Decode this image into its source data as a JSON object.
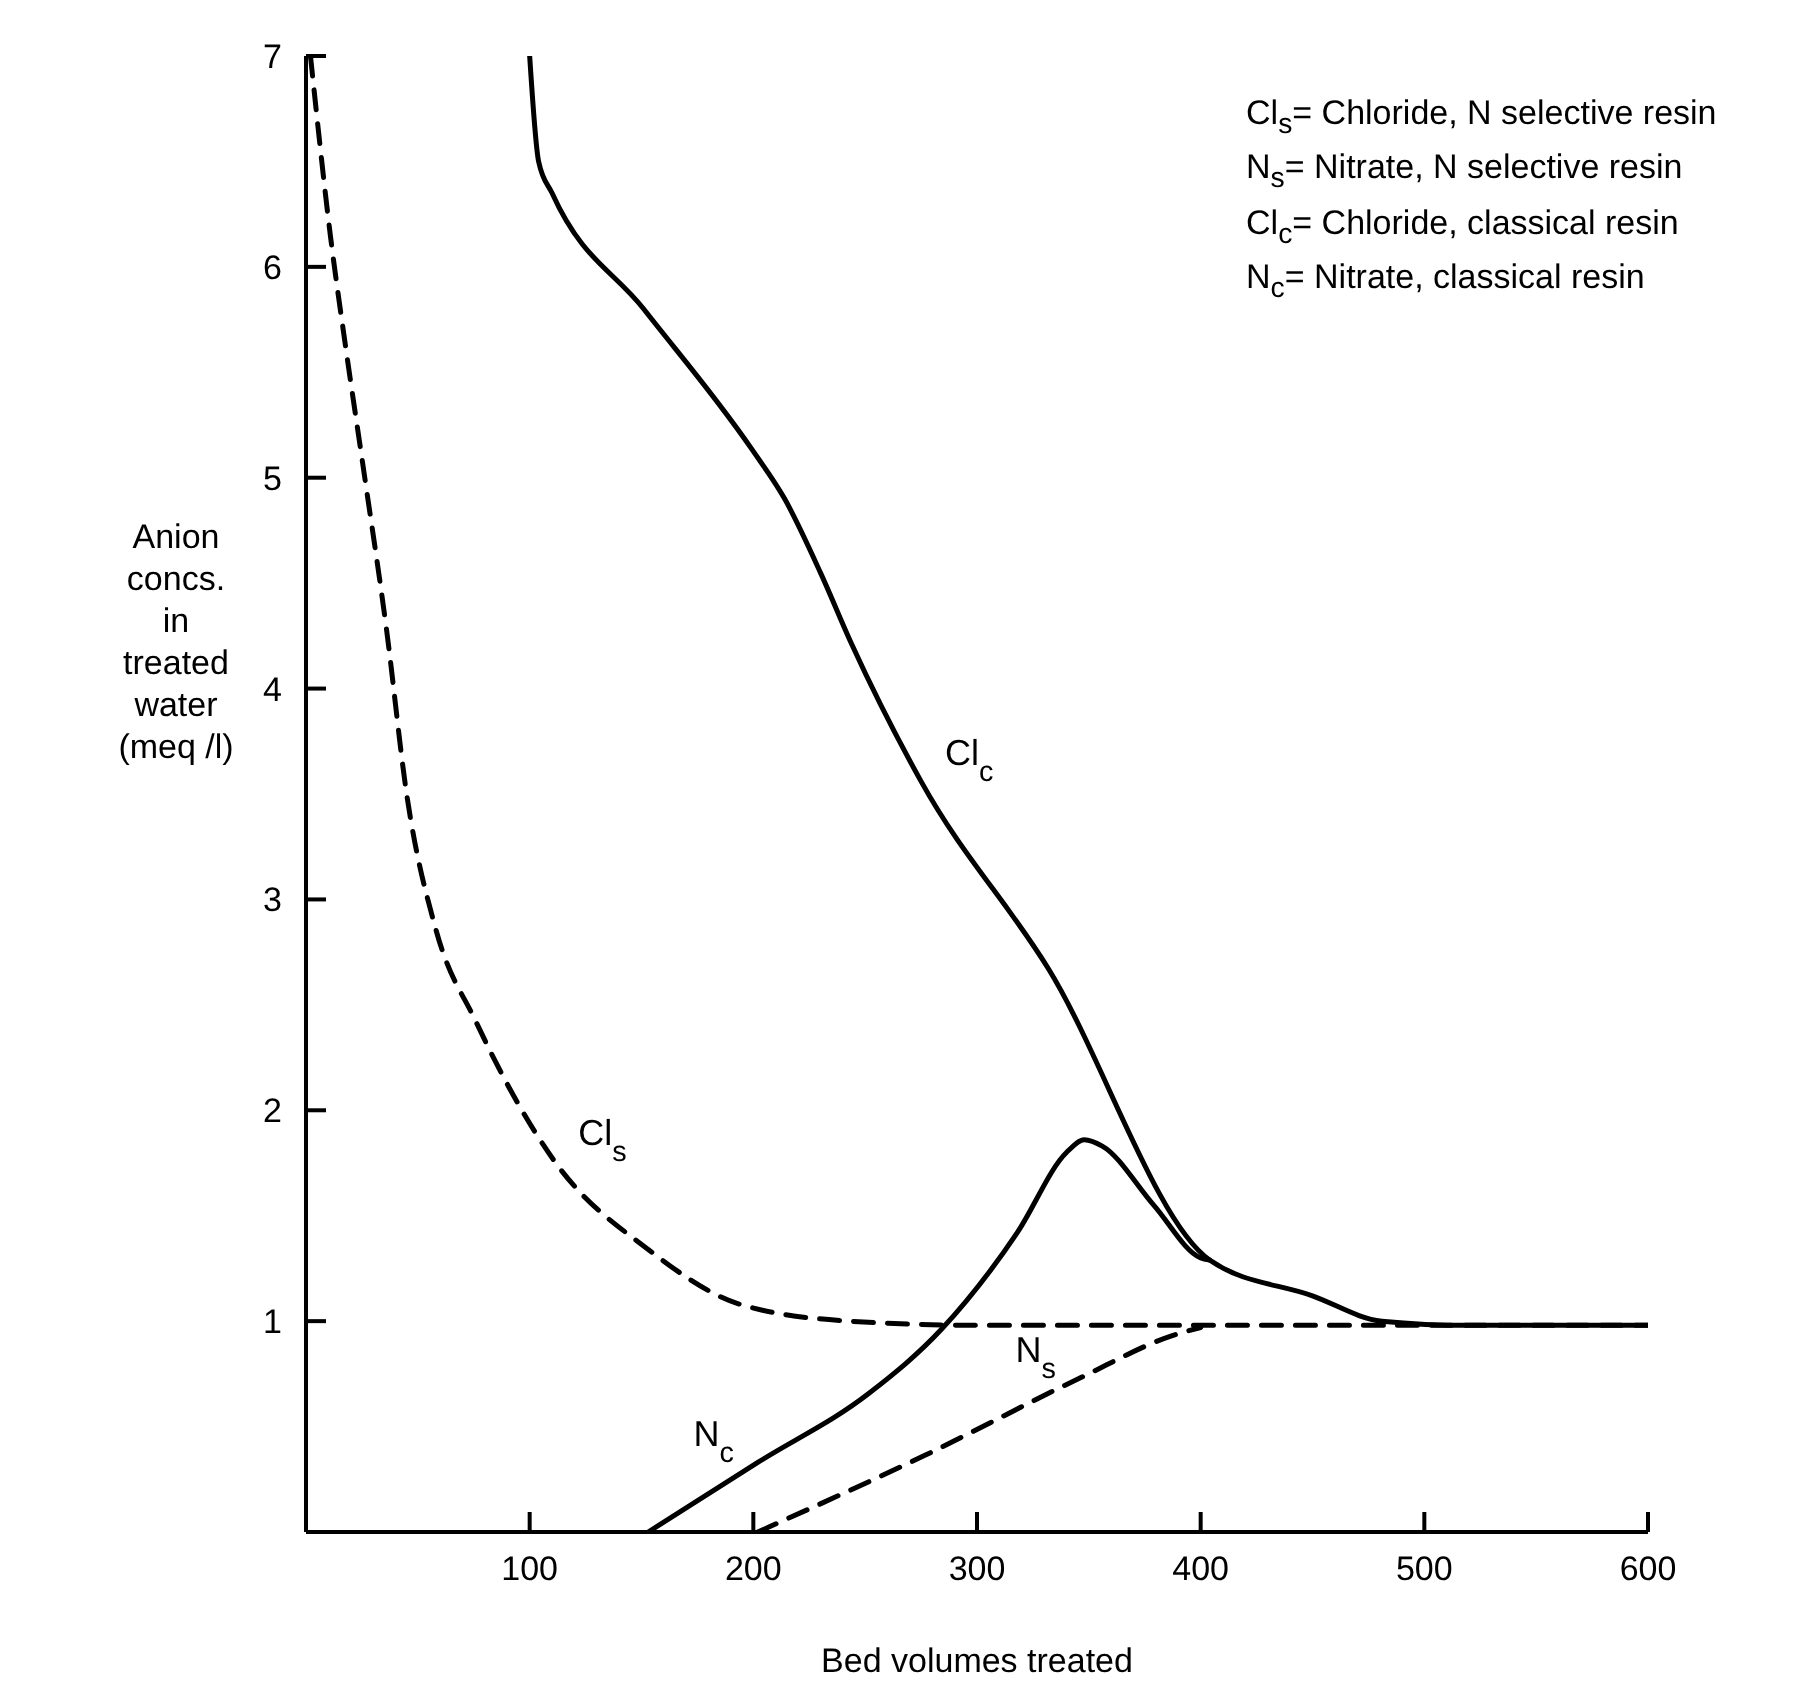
{
  "chart_data": {
    "type": "line",
    "xlabel": "Bed volumes treated",
    "ylabel": "Anion\nconcs.\nin\ntreated\nwater\n(meq /l)",
    "xlim": [
      0,
      600
    ],
    "xticks": [
      100,
      200,
      300,
      400,
      500,
      600
    ],
    "ylim": [
      0,
      7
    ],
    "yticks": [
      1,
      2,
      3,
      4,
      5,
      6,
      7
    ],
    "marker": "none",
    "series": [
      {
        "color": "#000000",
        "line_style": "solid",
        "x": [
          100,
          104,
          110,
          151,
          199,
          214,
          230,
          244,
          275,
          332,
          404,
          450,
          481,
          520,
          600
        ],
        "values": [
          7,
          6.5,
          6.35,
          5.8,
          5.14,
          4.9,
          4.55,
          4.21,
          3.56,
          2.67,
          1.29,
          1.12,
          1.0,
          0.98,
          0.98
        ]
      },
      {
        "color": "#000000",
        "line_style": "solid",
        "x": [
          153,
          202,
          252,
          284,
          318,
          340,
          348,
          356,
          379,
          400,
          404
        ],
        "values": [
          0,
          0.33,
          0.66,
          0.96,
          1.42,
          1.8,
          1.86,
          1.83,
          1.55,
          1.3,
          1.29
        ]
      },
      {
        "color": "#000000",
        "line_style": "dashed",
        "x": [
          2,
          11,
          18,
          26,
          36,
          45,
          58,
          76,
          111,
          153,
          194,
          243,
          300,
          400,
          500,
          600
        ],
        "values": [
          7,
          6.14,
          5.6,
          5.02,
          4.28,
          3.5,
          2.86,
          2.42,
          1.76,
          1.34,
          1.08,
          1.0,
          0.98,
          0.98,
          0.98,
          0.98
        ]
      },
      {
        "color": "#000000",
        "line_style": "dashed",
        "x": [
          202,
          276,
          346,
          387,
          400
        ],
        "values": [
          0,
          0.36,
          0.73,
          0.93,
          0.97
        ]
      }
    ],
    "annotations": [
      "Cl$_{s}$= Chloride, N selective resin",
      "N$_{s}$= Nitrate, N selective resin",
      "Cl$_{c}$= Chloride, classical resin",
      "N$_{c}$= Nitrate, classical resin",
      {
        "text": "Cl$_{c}$",
        "x": 275,
        "y": 3.56
      },
      {
        "text": "Cl$_{s}$",
        "x": 111,
        "y": 1.76
      },
      {
        "text": "N$_{c}$",
        "x": 202,
        "y": 0.33
      },
      {
        "text": "N$_{s}$",
        "x": 346,
        "y": 0.73
      }
    ]
  }
}
